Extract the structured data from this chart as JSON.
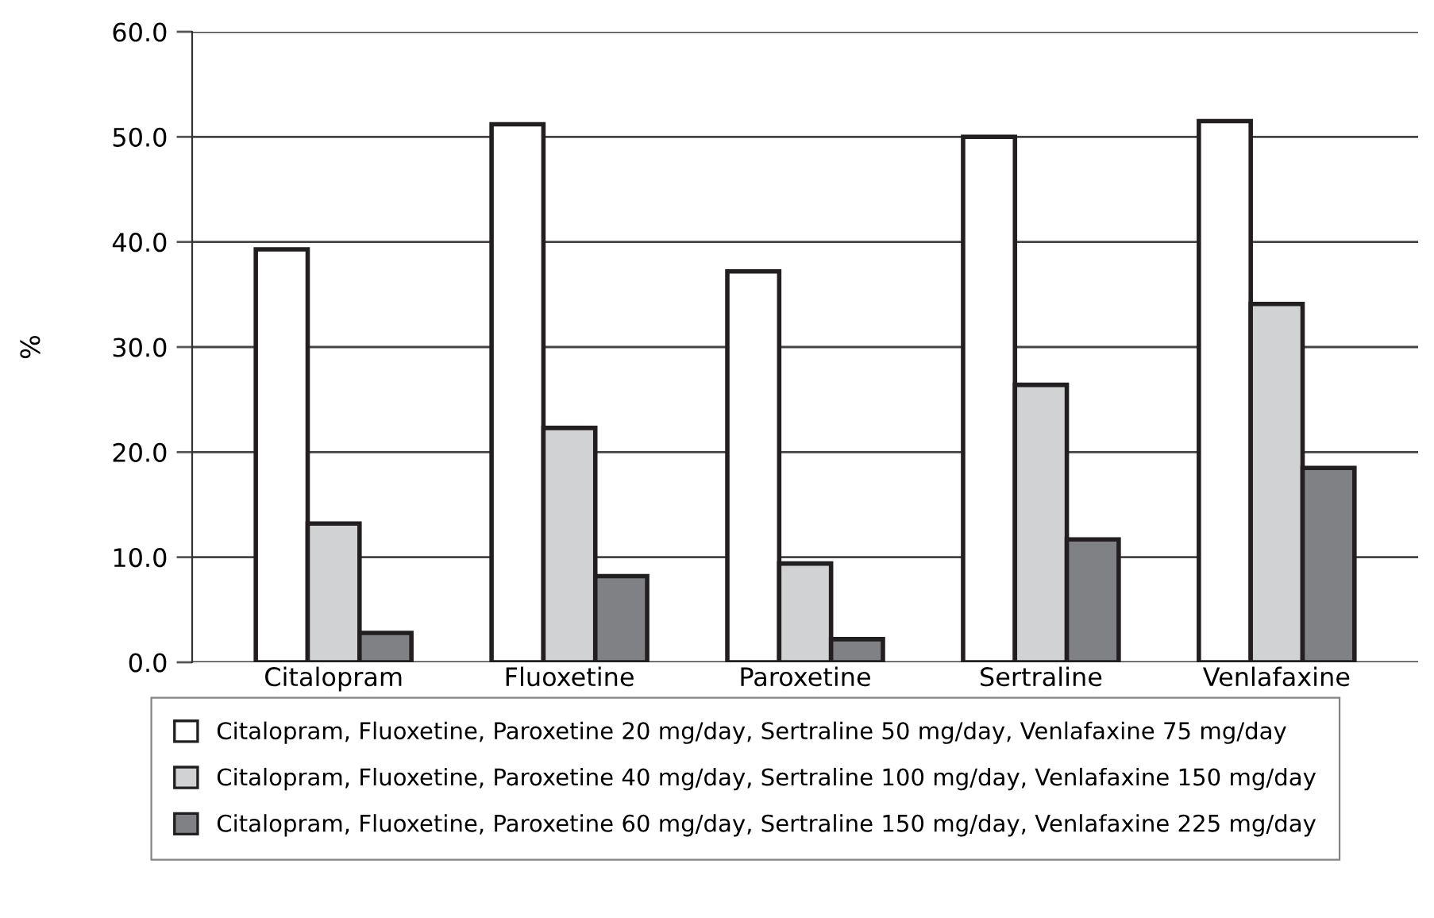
{
  "chart_data": {
    "type": "bar",
    "ylabel": "%",
    "categories": [
      "Citalopram",
      "Fluoxetine",
      "Paroxetine",
      "Sertraline",
      "Venlafaxine"
    ],
    "series": [
      {
        "name": "Citalopram, Fluoxetine, Paroxetine 20 mg/day, Sertraline 50 mg/day, Venlafaxine 75 mg/day",
        "color": "#ffffff",
        "values": [
          39.3,
          51.2,
          37.2,
          50.0,
          51.5
        ]
      },
      {
        "name": "Citalopram, Fluoxetine, Paroxetine 40 mg/day, Sertraline 100 mg/day, Venlafaxine 150 mg/day",
        "color": "#d1d2d4",
        "values": [
          13.2,
          22.3,
          9.4,
          26.4,
          34.1
        ]
      },
      {
        "name": "Citalopram, Fluoxetine, Paroxetine 60 mg/day, Sertraline 150 mg/day, Venlafaxine 225 mg/day",
        "color": "#808185",
        "values": [
          2.8,
          8.2,
          2.2,
          11.7,
          18.5
        ]
      }
    ],
    "ylim": [
      0,
      60
    ],
    "yticks": [
      {
        "value": 0,
        "label": "0.0"
      },
      {
        "value": 10,
        "label": "10.0"
      },
      {
        "value": 20,
        "label": "20.0"
      },
      {
        "value": 30,
        "label": "30.0"
      },
      {
        "value": 40,
        "label": "40.0"
      },
      {
        "value": 50,
        "label": "50.0"
      },
      {
        "value": 60,
        "label": "60.0"
      }
    ],
    "grid": "y",
    "legend": "bottom"
  }
}
